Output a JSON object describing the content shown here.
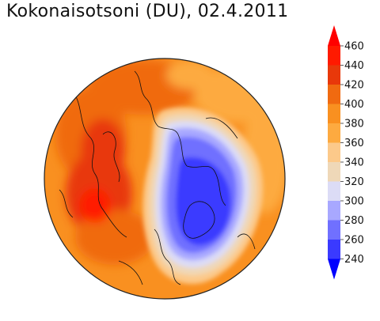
{
  "title": "Kokonaisotsoni (DU), 02.4.2011",
  "legend": {
    "ticks": [
      "460",
      "440",
      "420",
      "400",
      "380",
      "360",
      "340",
      "320",
      "300",
      "280",
      "260",
      "240"
    ],
    "levels": [
      {
        "color": "#0000ff"
      },
      {
        "color": "#3a3aff"
      },
      {
        "color": "#7070ff"
      },
      {
        "color": "#a8a8ff"
      },
      {
        "color": "#dcdcf6"
      },
      {
        "color": "#efd8b8"
      },
      {
        "color": "#fcc98a"
      },
      {
        "color": "#fdaa40"
      },
      {
        "color": "#f99020"
      },
      {
        "color": "#f06a10"
      },
      {
        "color": "#e8380a"
      },
      {
        "color": "#ff1a00"
      },
      {
        "color": "#ff0000"
      }
    ]
  }
}
